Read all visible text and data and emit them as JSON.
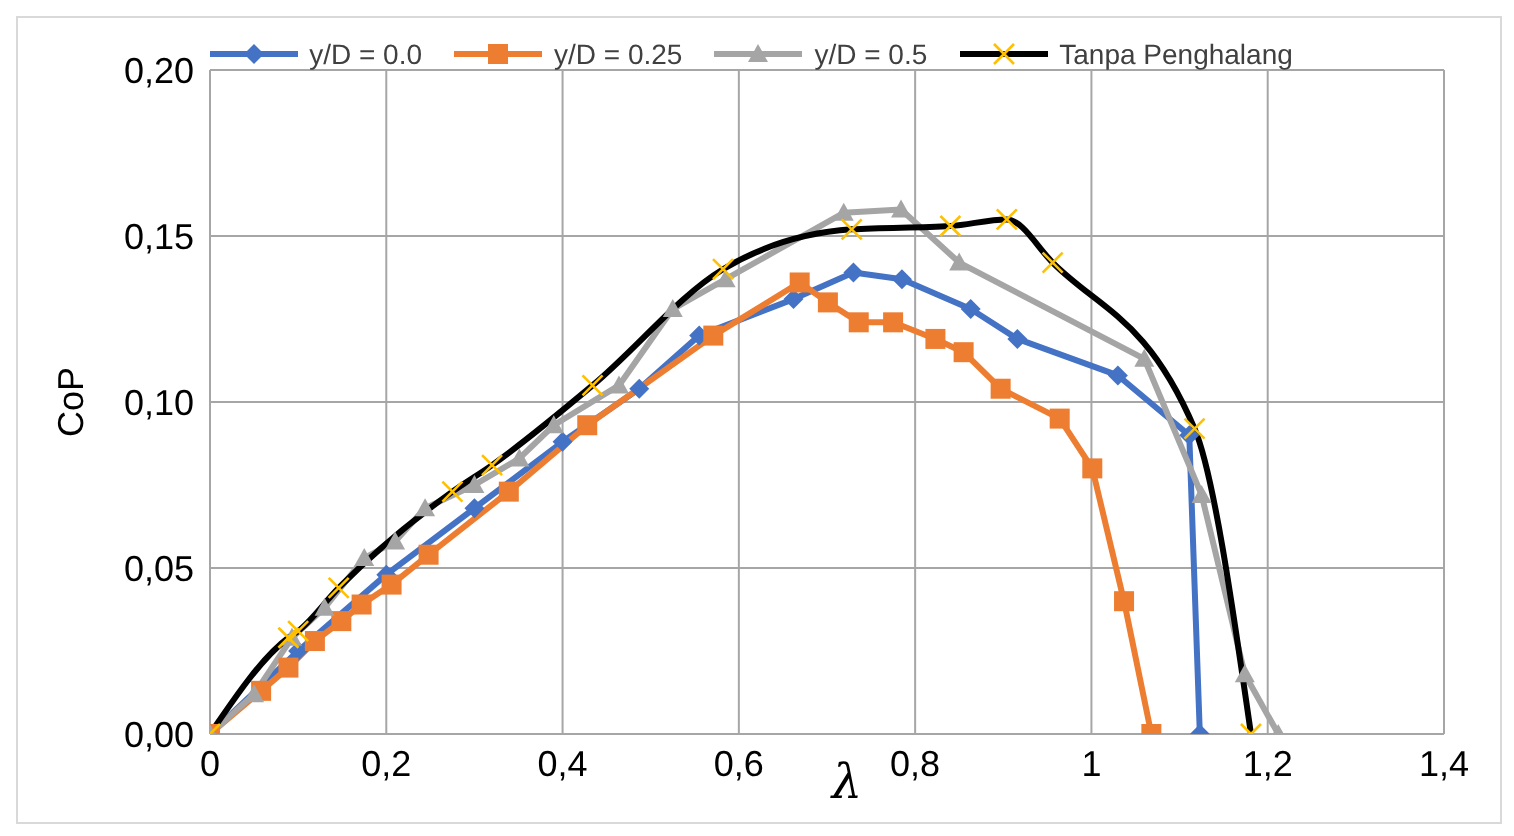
{
  "chart_data": {
    "type": "line",
    "xlabel": "λ",
    "ylabel": "CoP",
    "xlim": [
      0,
      1.4
    ],
    "ylim": [
      0,
      0.2
    ],
    "xticks": [
      {
        "value": 0,
        "label": "0"
      },
      {
        "value": 0.2,
        "label": "0,2"
      },
      {
        "value": 0.4,
        "label": "0,4"
      },
      {
        "value": 0.6,
        "label": "0,6"
      },
      {
        "value": 0.8,
        "label": "0,8"
      },
      {
        "value": 1,
        "label": "1"
      },
      {
        "value": 1.2,
        "label": "1,2"
      },
      {
        "value": 1.4,
        "label": "1,4"
      }
    ],
    "yticks": [
      {
        "value": 0,
        "label": "0,00"
      },
      {
        "value": 0.05,
        "label": "0,05"
      },
      {
        "value": 0.1,
        "label": "0,10"
      },
      {
        "value": 0.15,
        "label": "0,15"
      },
      {
        "value": 0.2,
        "label": "0,20"
      }
    ],
    "grid": true,
    "legend": "top",
    "series": [
      {
        "name": "y/D = 0.0",
        "color": "#4472c4",
        "marker": "diamond",
        "x": [
          0,
          0.1,
          0.2,
          0.3,
          0.4,
          0.487,
          0.555,
          0.662,
          0.73,
          0.785,
          0.863,
          0.916,
          1.03,
          1.111,
          1.123
        ],
        "values": [
          0,
          0.025,
          0.048,
          0.068,
          0.088,
          0.104,
          0.12,
          0.131,
          0.139,
          0.137,
          0.128,
          0.119,
          0.108,
          0.09,
          0
        ]
      },
      {
        "name": "y/D = 0.25",
        "color": "#ed7d31",
        "marker": "square",
        "x": [
          0,
          0.058,
          0.089,
          0.119,
          0.149,
          0.172,
          0.206,
          0.248,
          0.339,
          0.428,
          0.571,
          0.669,
          0.701,
          0.736,
          0.775,
          0.823,
          0.855,
          0.897,
          0.964,
          1.001,
          1.037,
          1.068
        ],
        "values": [
          0,
          0.013,
          0.02,
          0.028,
          0.034,
          0.039,
          0.045,
          0.054,
          0.073,
          0.093,
          0.12,
          0.136,
          0.13,
          0.124,
          0.124,
          0.119,
          0.115,
          0.104,
          0.095,
          0.08,
          0.04,
          0
        ]
      },
      {
        "name": "y/D = 0.5",
        "color": "#a5a5a5",
        "marker": "triangle",
        "x": [
          0,
          0.05,
          0.093,
          0.13,
          0.175,
          0.21,
          0.244,
          0.3,
          0.351,
          0.39,
          0.464,
          0.525,
          0.585,
          0.719,
          0.784,
          0.85,
          1.06,
          1.125,
          1.174,
          1.212
        ],
        "values": [
          0,
          0.012,
          0.029,
          0.038,
          0.053,
          0.058,
          0.068,
          0.075,
          0.083,
          0.093,
          0.105,
          0.128,
          0.137,
          0.157,
          0.158,
          0.142,
          0.113,
          0.072,
          0.018,
          0
        ]
      },
      {
        "name": "Tanpa Penghalang",
        "color": "#000000",
        "marker": "cross",
        "colors": [
          "#ffc000",
          "#ffc000",
          "#ffc000",
          "#ffc000",
          "#ffc000",
          "#ffc000",
          "#ffc000",
          "#ffc000",
          "#ffc000",
          "#ffc000",
          "#ffc000",
          "#ffc000",
          "#ffc000",
          "#ffc000"
        ],
        "x": [
          0,
          0.089,
          0.1,
          0.146,
          0.275,
          0.32,
          0.434,
          0.582,
          0.728,
          0.84,
          0.904,
          0.956,
          1.117,
          1.181
        ],
        "values": [
          0,
          0.029,
          0.031,
          0.044,
          0.073,
          0.081,
          0.105,
          0.14,
          0.152,
          0.153,
          0.155,
          0.142,
          0.092,
          0
        ]
      }
    ]
  }
}
